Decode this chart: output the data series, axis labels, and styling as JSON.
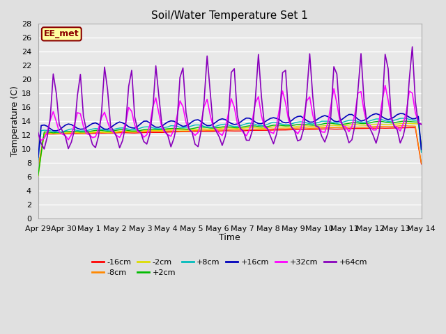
{
  "title": "Soil/Water Temperature Set 1",
  "xlabel": "Time",
  "ylabel": "Temperature (C)",
  "watermark": "EE_met",
  "ylim": [
    0,
    28
  ],
  "yticks": [
    0,
    2,
    4,
    6,
    8,
    10,
    12,
    14,
    16,
    18,
    20,
    22,
    24,
    26,
    28
  ],
  "xtick_labels": [
    "Apr 29",
    "Apr 30",
    "May 1",
    "May 2",
    "May 3",
    "May 4",
    "May 5",
    "May 6",
    "May 7",
    "May 8",
    "May 9",
    "May 10",
    "May 11",
    "May 12",
    "May 13",
    "May 14"
  ],
  "bg_color": "#e0e0e0",
  "plot_bg_color": "#e8e8e8",
  "grid_color": "#ffffff",
  "series": [
    {
      "label": "-16cm",
      "color": "#ff0000"
    },
    {
      "label": "-8cm",
      "color": "#ff8800"
    },
    {
      "label": "-2cm",
      "color": "#dddd00"
    },
    {
      "label": "+2cm",
      "color": "#00bb00"
    },
    {
      "label": "+8cm",
      "color": "#00bbbb"
    },
    {
      "label": "+16cm",
      "color": "#0000bb"
    },
    {
      "label": "+32cm",
      "color": "#ff00ff"
    },
    {
      "label": "+64cm",
      "color": "#8800bb"
    }
  ]
}
